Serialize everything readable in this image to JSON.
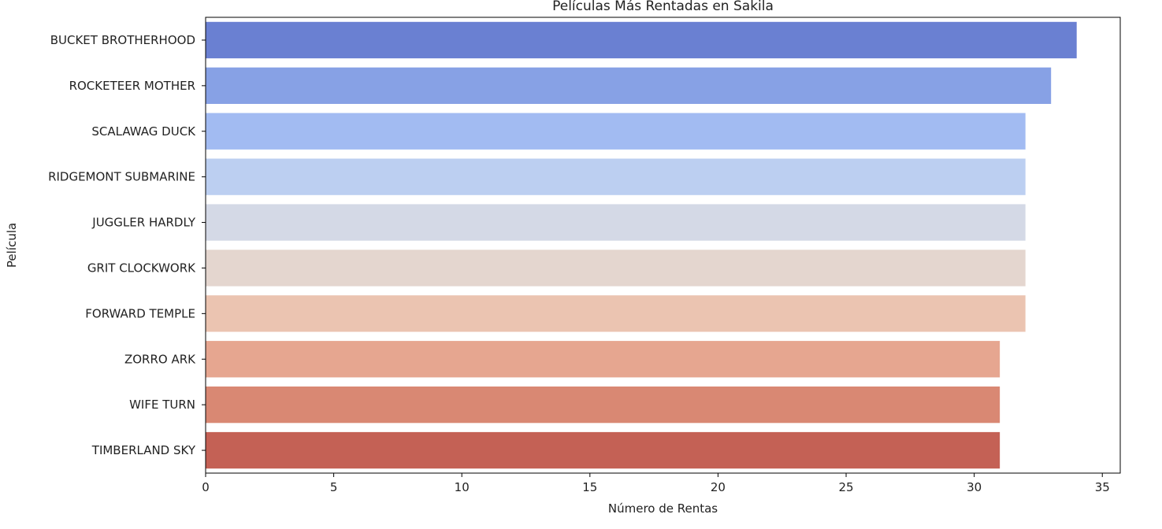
{
  "chart_data": {
    "type": "bar",
    "orientation": "horizontal",
    "title": "Películas Más Rentadas en Sakila",
    "xlabel": "Número de Rentas",
    "ylabel": "Película",
    "xlim": [
      0,
      35.7
    ],
    "xticks": [
      0,
      5,
      10,
      15,
      20,
      25,
      30,
      35
    ],
    "categories": [
      "BUCKET BROTHERHOOD",
      "ROCKETEER MOTHER",
      "SCALAWAG DUCK",
      "RIDGEMONT SUBMARINE",
      "JUGGLER HARDLY",
      "GRIT CLOCKWORK",
      "FORWARD TEMPLE",
      "ZORRO ARK",
      "WIFE TURN",
      "TIMBERLAND SKY"
    ],
    "values": [
      34,
      33,
      32,
      32,
      32,
      32,
      32,
      31,
      31,
      31
    ],
    "colors": [
      "#6a80d2",
      "#87a1e5",
      "#a2bbf2",
      "#bccff1",
      "#d4d9e6",
      "#e4d6cf",
      "#ebc4b1",
      "#e6a690",
      "#d98873",
      "#c46155"
    ],
    "grid": false,
    "legend": "none"
  }
}
